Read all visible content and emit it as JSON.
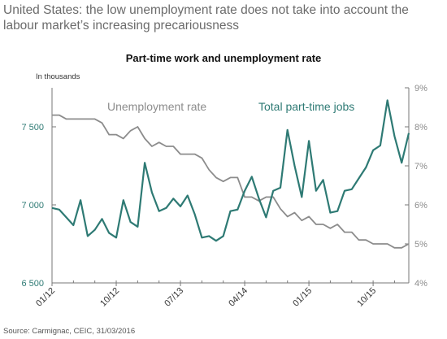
{
  "headline": "United States: the low unemployment rate does not take into account the labour market’s increasing precariousness",
  "chart_data": {
    "type": "line",
    "title": "Part-time work and unemployment rate",
    "unit_label": "In thousands",
    "source": "Source: Carmignac, CEIC, 31/03/2016",
    "x_tick_labels": [
      "01/12",
      "10/12",
      "07/13",
      "04/14",
      "01/15",
      "10/15"
    ],
    "x_start": "2012-01",
    "x_end": "2016-02",
    "y_left": {
      "ylim": [
        6500,
        7750
      ],
      "ticks": [
        6500,
        7000,
        7500
      ],
      "tick_labels": [
        "6 500",
        "7 000",
        "7 500"
      ]
    },
    "y_right": {
      "ylim": [
        4,
        9
      ],
      "ticks": [
        4,
        5,
        6,
        7,
        8,
        9
      ],
      "tick_labels": [
        "4%",
        "5%",
        "6%",
        "7%",
        "8%",
        "9%"
      ]
    },
    "series": [
      {
        "name": "Unemployment rate",
        "axis": "right",
        "color": "#8c8c8c",
        "values": [
          8.3,
          8.3,
          8.2,
          8.2,
          8.2,
          8.2,
          8.2,
          8.1,
          7.8,
          7.8,
          7.7,
          7.9,
          8.0,
          7.7,
          7.5,
          7.6,
          7.5,
          7.5,
          7.3,
          7.3,
          7.3,
          7.2,
          6.9,
          6.7,
          6.6,
          6.7,
          6.7,
          6.2,
          6.2,
          6.1,
          6.2,
          6.2,
          5.9,
          5.7,
          5.8,
          5.6,
          5.7,
          5.5,
          5.5,
          5.4,
          5.5,
          5.3,
          5.3,
          5.1,
          5.1,
          5.0,
          5.0,
          5.0,
          4.9,
          4.9,
          5.0
        ]
      },
      {
        "name": "Total part-time jobs",
        "axis": "left",
        "color": "#2e7a74",
        "values": [
          6980,
          6970,
          6920,
          6870,
          7030,
          6800,
          6840,
          6910,
          6820,
          6790,
          7030,
          6890,
          6860,
          7270,
          7080,
          6960,
          6980,
          7040,
          6990,
          7060,
          6940,
          6790,
          6800,
          6770,
          6800,
          6960,
          6970,
          7090,
          7180,
          7040,
          6920,
          7090,
          7110,
          7480,
          7250,
          7050,
          7410,
          7090,
          7160,
          6950,
          6960,
          7090,
          7100,
          7170,
          7240,
          7350,
          7380,
          7670,
          7440,
          7270,
          7460
        ]
      }
    ],
    "grid": false,
    "legend": "inline-labels"
  }
}
